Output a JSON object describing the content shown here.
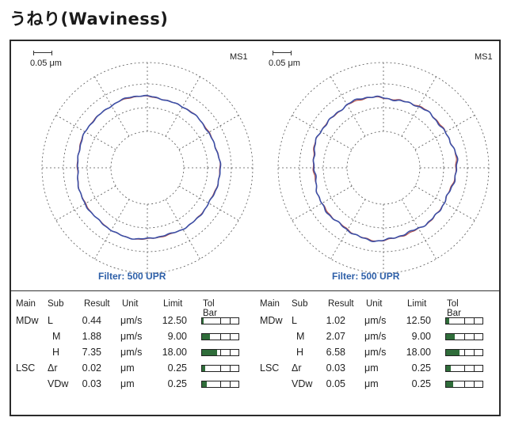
{
  "page": {
    "title": "うねり(Waviness)"
  },
  "plots": [
    {
      "scale_label": "0.05 μm",
      "ms_label": "MS1",
      "filter_label": "Filter: 500 UPR"
    },
    {
      "scale_label": "0.05 μm",
      "ms_label": "MS1",
      "filter_label": "Filter: 500 UPR"
    }
  ],
  "tables": [
    {
      "headers": {
        "main": "Main",
        "sub": "Sub",
        "result": "Result",
        "unit": "Unit",
        "limit": "Limit",
        "tolbar": "Tol Bar"
      },
      "rows": [
        {
          "main": "MDw",
          "sub": "L",
          "result": "0.44",
          "unit": "μm/s",
          "limit": "12.50",
          "fraction": 0.04
        },
        {
          "main": "",
          "sub": "M",
          "result": "1.88",
          "unit": "μm/s",
          "limit": "9.00",
          "fraction": 0.21
        },
        {
          "main": "",
          "sub": "H",
          "result": "7.35",
          "unit": "μm/s",
          "limit": "18.00",
          "fraction": 0.41
        },
        {
          "main": "LSC",
          "sub": "Δr",
          "result": "0.02",
          "unit": "μm",
          "limit": "0.25",
          "fraction": 0.08
        },
        {
          "main": "",
          "sub": "VDw",
          "result": "0.03",
          "unit": "μm",
          "limit": "0.25",
          "fraction": 0.12
        }
      ]
    },
    {
      "headers": {
        "main": "Main",
        "sub": "Sub",
        "result": "Result",
        "unit": "Unit",
        "limit": "Limit",
        "tolbar": "Tol Bar"
      },
      "rows": [
        {
          "main": "MDw",
          "sub": "L",
          "result": "1.02",
          "unit": "μm/s",
          "limit": "12.50",
          "fraction": 0.08
        },
        {
          "main": "",
          "sub": "M",
          "result": "2.07",
          "unit": "μm/s",
          "limit": "9.00",
          "fraction": 0.23
        },
        {
          "main": "",
          "sub": "H",
          "result": "6.58",
          "unit": "μm/s",
          "limit": "18.00",
          "fraction": 0.37
        },
        {
          "main": "LSC",
          "sub": "Δr",
          "result": "0.03",
          "unit": "μm",
          "limit": "0.25",
          "fraction": 0.12
        },
        {
          "main": "",
          "sub": "VDw",
          "result": "0.05",
          "unit": "μm",
          "limit": "0.25",
          "fraction": 0.2
        }
      ]
    }
  ],
  "colors": {
    "profile_blue": "#3c4fa6",
    "profile_red": "#b54a3e",
    "bar_fill": "#2f6d3a",
    "filter_text": "#2d5fa8"
  }
}
